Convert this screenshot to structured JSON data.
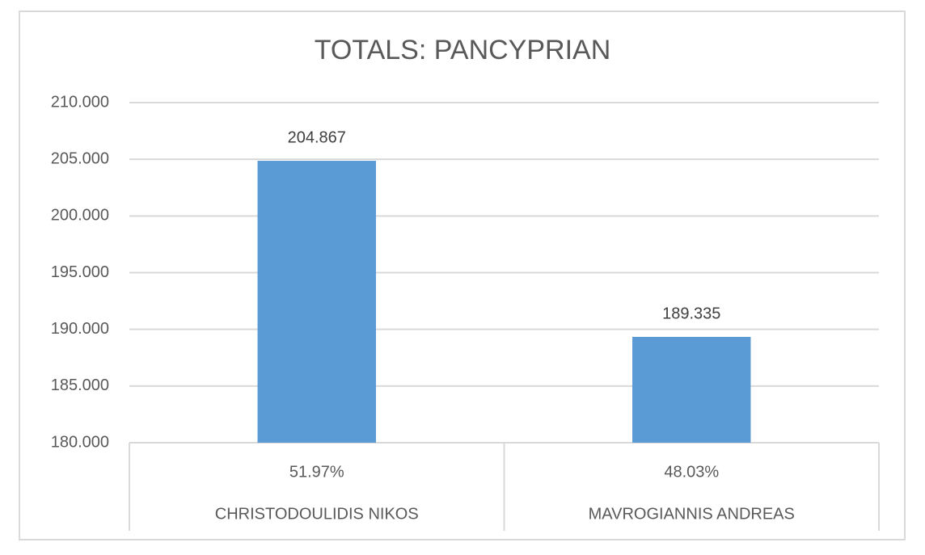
{
  "chart_data": {
    "type": "bar",
    "title": "TOTALS: PANCYPRIAN",
    "categories": [
      "CHRISTODOULIDIS NIKOS",
      "MAVROGIANNIS ANDREAS"
    ],
    "category_subtitles": [
      "51.97%",
      "48.03%"
    ],
    "values": [
      204867,
      189335
    ],
    "value_labels": [
      "204.867",
      "189.335"
    ],
    "color": "#5b9bd5",
    "ylim": [
      180000,
      210000
    ],
    "yticks": [
      {
        "value": 180000,
        "label": "180.000"
      },
      {
        "value": 185000,
        "label": "185.000"
      },
      {
        "value": 190000,
        "label": "190.000"
      },
      {
        "value": 195000,
        "label": "195.000"
      },
      {
        "value": 200000,
        "label": "200.000"
      },
      {
        "value": 205000,
        "label": "205.000"
      },
      {
        "value": 210000,
        "label": "210.000"
      }
    ],
    "grid": true
  }
}
